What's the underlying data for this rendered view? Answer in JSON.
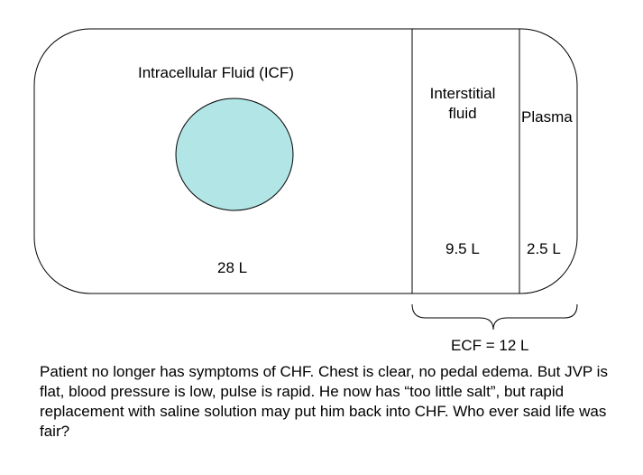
{
  "compartments": {
    "icf": {
      "title": "Intracellular Fluid (ICF)",
      "volume": "28 L",
      "cell_color": "#b2e5e6"
    },
    "interstitial": {
      "title_line1": "Interstitial",
      "title_line2": "fluid",
      "volume": "9.5 L"
    },
    "plasma": {
      "title": "Plasma",
      "volume": "2.5 L"
    }
  },
  "ecf": {
    "label": "ECF = 12 L"
  },
  "caption": {
    "text": "Patient no longer has symptoms of CHF.  Chest is clear, no pedal edema. But JVP is flat, blood pressure is low, pulse is rapid. He now has “too little salt”, but rapid replacement with saline solution may put him back into CHF.  Who ever said life was fair?"
  }
}
